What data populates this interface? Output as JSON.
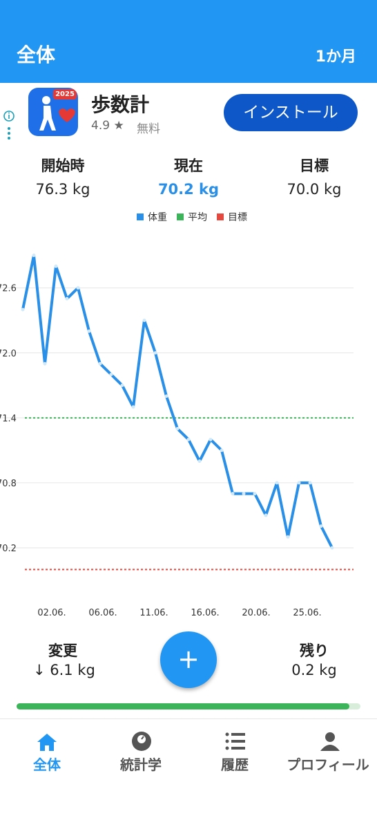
{
  "header": {
    "title": "全体",
    "period": "1か月"
  },
  "ad": {
    "badge": "2025",
    "name": "歩数計",
    "rating": "4.9 ★",
    "price": "無料",
    "button": "インストール"
  },
  "stats": [
    {
      "label": "開始時",
      "value": "76.3 kg"
    },
    {
      "label": "現在",
      "value": "70.2 kg"
    },
    {
      "label": "目標",
      "value": "70.0 kg"
    }
  ],
  "chart_data": {
    "type": "line",
    "series": [
      {
        "name": "体重",
        "color": "#2a8fe6",
        "values": [
          72.4,
          72.9,
          71.9,
          72.8,
          72.5,
          72.6,
          72.2,
          71.9,
          71.8,
          71.7,
          71.5,
          72.3,
          72.0,
          71.6,
          71.3,
          71.2,
          71.0,
          71.2,
          71.1,
          70.7,
          70.7,
          70.7,
          70.5,
          70.8,
          70.3,
          70.8,
          70.8,
          70.4,
          70.2
        ]
      }
    ],
    "reference_lines": [
      {
        "name": "平均",
        "color": "#3cb55a",
        "value": 71.4
      },
      {
        "name": "目標",
        "color": "#e5483f",
        "value": 70.0
      }
    ],
    "x_labels": [
      "02.06.",
      "06.06.",
      "11.06.",
      "16.06.",
      "20.06.",
      "25.06."
    ],
    "ylim": [
      69.9,
      73.0
    ],
    "yticks": [
      72.6,
      {
        "value": 72,
        "label": "72.0"
      },
      71.4,
      70.8,
      70.2
    ],
    "grid": true
  },
  "summary": {
    "change_label": "変更",
    "change_value": "↓ 6.1 kg",
    "add_button": "+",
    "remaining_label": "残り",
    "remaining_value": "0.2 kg"
  },
  "nav": [
    "全体",
    "統計学",
    "履歴",
    "プロフィール"
  ]
}
